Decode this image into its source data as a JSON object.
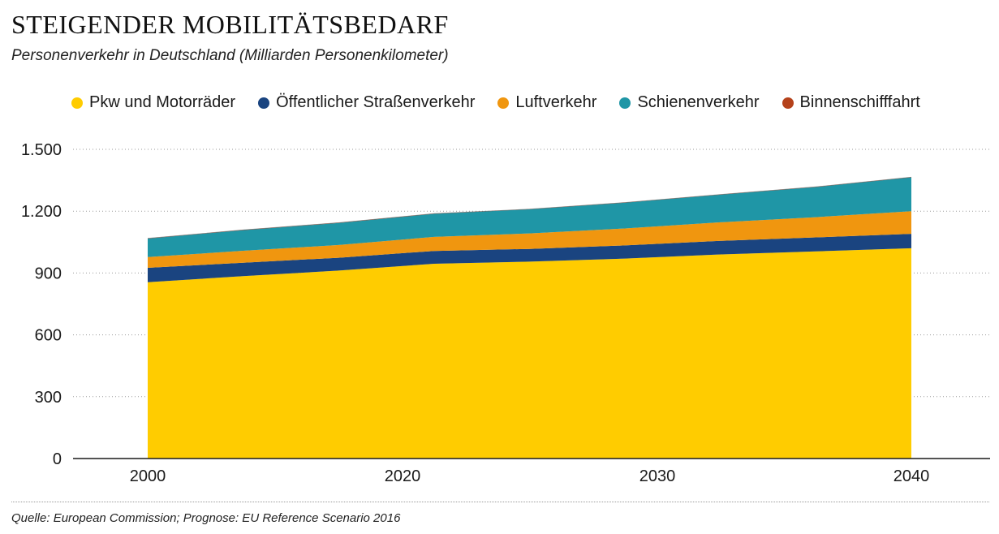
{
  "header": {
    "title": "STEIGENDER MOBILITÄTSBEDARF",
    "subtitle": "Personenverkehr in Deutschland (Milliarden Personenkilometer)"
  },
  "legend": [
    {
      "label": "Pkw und Motorräder",
      "color": "#ffcc00"
    },
    {
      "label": "Öffentlicher Straßenverkehr",
      "color": "#1a4480"
    },
    {
      "label": "Luftverkehr",
      "color": "#f0960f"
    },
    {
      "label": "Schienenverkehr",
      "color": "#1f96a6"
    },
    {
      "label": "Binnenschifffahrt",
      "color": "#b5421b"
    }
  ],
  "footer": {
    "source": "Quelle: European Commission; Prognose: EU Reference Scenario 2016"
  },
  "chart_data": {
    "type": "area",
    "stacked": true,
    "title": "STEIGENDER MOBILITÄTSBEDARF",
    "subtitle": "Personenverkehr in Deutschland (Milliarden Personenkilometer)",
    "xlabel": "",
    "ylabel": "",
    "x": [
      2000,
      2005,
      2010,
      2015,
      2020,
      2025,
      2030,
      2035,
      2040
    ],
    "x_tick_labels": [
      "2000",
      "2020",
      "2030",
      "2040"
    ],
    "ylim": [
      0,
      1500
    ],
    "y_ticks": [
      0,
      300,
      600,
      900,
      1200,
      1500
    ],
    "y_tick_labels": [
      "0",
      "300",
      "600",
      "900",
      "1.200",
      "1.500"
    ],
    "grid": true,
    "legend_position": "top",
    "series": [
      {
        "name": "Pkw und Motorräder",
        "color": "#ffcc00",
        "values": [
          855,
          885,
          912,
          945,
          955,
          970,
          990,
          1005,
          1020
        ]
      },
      {
        "name": "Öffentlicher Straßenverkehr",
        "color": "#1a4480",
        "values": [
          70,
          65,
          62,
          62,
          62,
          64,
          66,
          68,
          70
        ]
      },
      {
        "name": "Luftverkehr",
        "color": "#f0960f",
        "values": [
          52,
          58,
          62,
          68,
          75,
          82,
          90,
          98,
          110
        ]
      },
      {
        "name": "Schienenverkehr",
        "color": "#1f96a6",
        "values": [
          90,
          100,
          107,
          112,
          117,
          125,
          134,
          146,
          164
        ]
      },
      {
        "name": "Binnenschifffahrt",
        "color": "#b5421b",
        "values": [
          1,
          1,
          1,
          1,
          1,
          1,
          1,
          1,
          1
        ]
      }
    ]
  }
}
